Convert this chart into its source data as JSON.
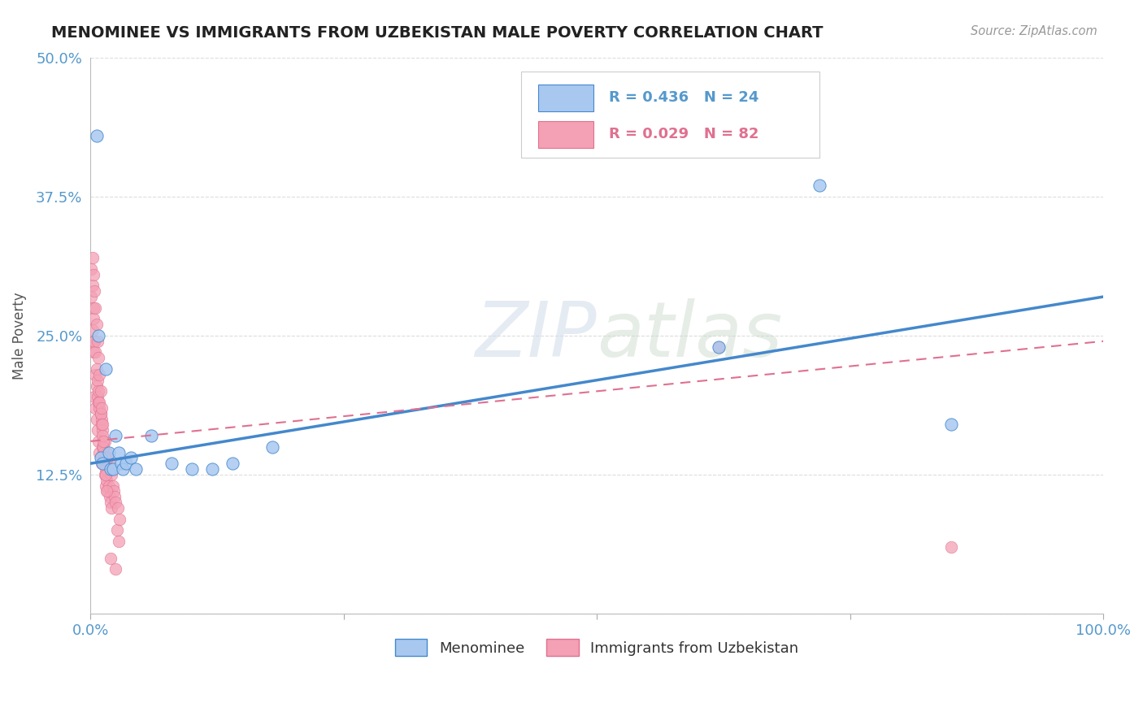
{
  "title": "MENOMINEE VS IMMIGRANTS FROM UZBEKISTAN MALE POVERTY CORRELATION CHART",
  "source": "Source: ZipAtlas.com",
  "ylabel": "Male Poverty",
  "xlim": [
    0,
    1.0
  ],
  "ylim": [
    0,
    0.5
  ],
  "xtick_vals": [
    0.0,
    0.25,
    0.5,
    0.75,
    1.0
  ],
  "xticklabels": [
    "0.0%",
    "",
    "",
    "",
    "100.0%"
  ],
  "ytick_vals": [
    0.0,
    0.125,
    0.25,
    0.375,
    0.5
  ],
  "yticklabels": [
    "",
    "12.5%",
    "25.0%",
    "37.5%",
    "50.0%"
  ],
  "legend_r1": "R = 0.436",
  "legend_n1": "N = 24",
  "legend_r2": "R = 0.029",
  "legend_n2": "N = 82",
  "series1_label": "Menominee",
  "series2_label": "Immigrants from Uzbekistan",
  "color1": "#a8c8f0",
  "color2": "#f4a0b5",
  "line1_color": "#4488cc",
  "line2_color": "#e07090",
  "watermark_zip": "ZIP",
  "watermark_atlas": "atlas",
  "menominee_x": [
    0.006,
    0.008,
    0.01,
    0.012,
    0.015,
    0.018,
    0.02,
    0.022,
    0.025,
    0.028,
    0.03,
    0.032,
    0.035,
    0.04,
    0.045,
    0.06,
    0.08,
    0.1,
    0.12,
    0.14,
    0.18,
    0.62,
    0.72,
    0.85
  ],
  "menominee_y": [
    0.43,
    0.25,
    0.14,
    0.135,
    0.22,
    0.145,
    0.13,
    0.13,
    0.16,
    0.145,
    0.135,
    0.13,
    0.135,
    0.14,
    0.13,
    0.16,
    0.135,
    0.13,
    0.13,
    0.135,
    0.15,
    0.24,
    0.385,
    0.17
  ],
  "uzbekistan_x": [
    0.001,
    0.001,
    0.002,
    0.002,
    0.003,
    0.003,
    0.004,
    0.004,
    0.005,
    0.005,
    0.006,
    0.006,
    0.007,
    0.007,
    0.008,
    0.008,
    0.009,
    0.009,
    0.01,
    0.01,
    0.011,
    0.011,
    0.012,
    0.012,
    0.013,
    0.013,
    0.014,
    0.014,
    0.015,
    0.015,
    0.016,
    0.016,
    0.017,
    0.017,
    0.018,
    0.018,
    0.019,
    0.019,
    0.02,
    0.02,
    0.021,
    0.021,
    0.022,
    0.023,
    0.024,
    0.025,
    0.026,
    0.027,
    0.028,
    0.029,
    0.003,
    0.004,
    0.005,
    0.006,
    0.007,
    0.008,
    0.009,
    0.01,
    0.011,
    0.012,
    0.013,
    0.014,
    0.015,
    0.002,
    0.003,
    0.004,
    0.005,
    0.006,
    0.007,
    0.008,
    0.009,
    0.01,
    0.011,
    0.012,
    0.013,
    0.014,
    0.015,
    0.016,
    0.02,
    0.025,
    0.62,
    0.85
  ],
  "uzbekistan_y": [
    0.31,
    0.285,
    0.295,
    0.255,
    0.275,
    0.235,
    0.245,
    0.195,
    0.215,
    0.185,
    0.205,
    0.175,
    0.195,
    0.165,
    0.19,
    0.155,
    0.185,
    0.145,
    0.18,
    0.14,
    0.175,
    0.135,
    0.165,
    0.15,
    0.145,
    0.135,
    0.155,
    0.125,
    0.14,
    0.115,
    0.145,
    0.12,
    0.14,
    0.11,
    0.135,
    0.115,
    0.13,
    0.105,
    0.13,
    0.1,
    0.125,
    0.095,
    0.115,
    0.11,
    0.105,
    0.1,
    0.075,
    0.095,
    0.065,
    0.085,
    0.265,
    0.245,
    0.235,
    0.22,
    0.21,
    0.2,
    0.19,
    0.18,
    0.17,
    0.16,
    0.15,
    0.14,
    0.13,
    0.32,
    0.305,
    0.29,
    0.275,
    0.26,
    0.245,
    0.23,
    0.215,
    0.2,
    0.185,
    0.17,
    0.155,
    0.14,
    0.125,
    0.11,
    0.05,
    0.04,
    0.24,
    0.06
  ],
  "trend1_x0": 0.0,
  "trend1_y0": 0.135,
  "trend1_x1": 1.0,
  "trend1_y1": 0.285,
  "trend2_x0": 0.0,
  "trend2_y0": 0.155,
  "trend2_x1": 1.0,
  "trend2_y1": 0.245
}
